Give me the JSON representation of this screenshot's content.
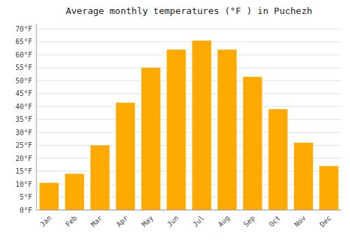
{
  "chart_data": {
    "type": "bar",
    "title": "Average monthly temperatures (°F ) in Puchezh",
    "categories": [
      "Jan",
      "Feb",
      "Mar",
      "Apr",
      "May",
      "Jun",
      "Jul",
      "Aug",
      "Sep",
      "Oct",
      "Nov",
      "Dec"
    ],
    "values": [
      10.5,
      14.0,
      25.0,
      41.5,
      55.0,
      62.0,
      65.5,
      62.0,
      51.5,
      39.0,
      26.0,
      17.0
    ],
    "color": "#FFAA00",
    "ylim": [
      0,
      72
    ],
    "yticks": [
      {
        "value": 0,
        "label": "0°F"
      },
      {
        "value": 5,
        "label": "5°F"
      },
      {
        "value": 10,
        "label": "10°F"
      },
      {
        "value": 15,
        "label": "15°F"
      },
      {
        "value": 20,
        "label": "20°F"
      },
      {
        "value": 25,
        "label": "25°F"
      },
      {
        "value": 30,
        "label": "30°F"
      },
      {
        "value": 35,
        "label": "35°F"
      },
      {
        "value": 40,
        "label": "40°F"
      },
      {
        "value": 45,
        "label": "45°F"
      },
      {
        "value": 50,
        "label": "50°F"
      },
      {
        "value": 55,
        "label": "55°F"
      },
      {
        "value": 60,
        "label": "60°F"
      },
      {
        "value": 65,
        "label": "65°F"
      },
      {
        "value": 70,
        "label": "70°F"
      }
    ],
    "grid": true
  }
}
